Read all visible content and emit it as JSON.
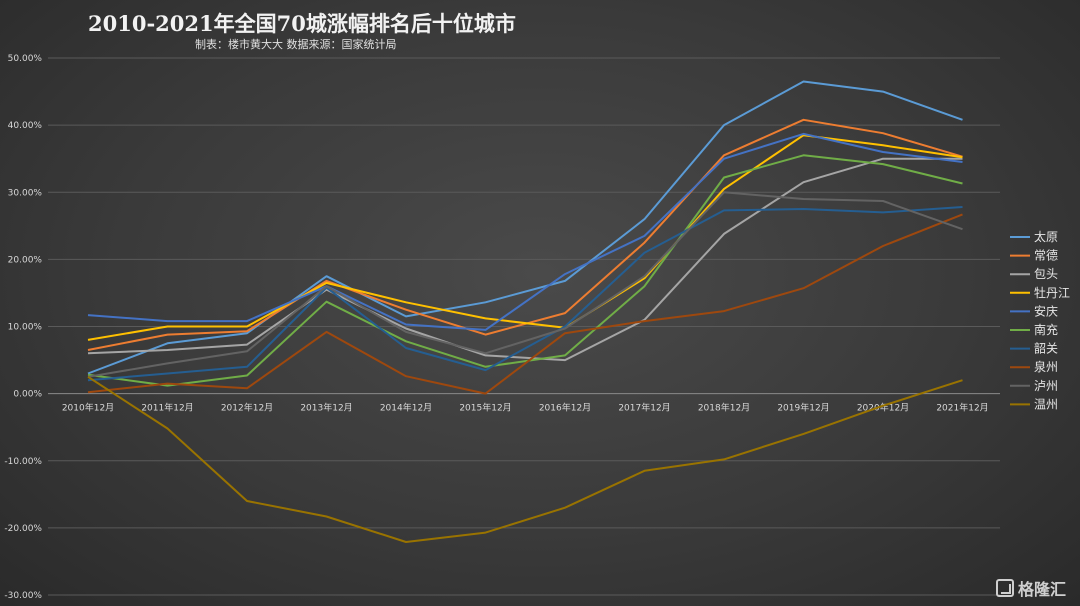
{
  "header": {
    "title": "2010-2021年全国70城涨幅排名后十位城市",
    "subtitle": "制表：楼市黄大大 数据来源：国家统计局"
  },
  "watermark": {
    "text": "格隆汇"
  },
  "chart_data": {
    "type": "line",
    "title": "2010-2021年全国70城涨幅排名后十位城市",
    "subtitle": "制表：楼市黄大大 数据来源：国家统计局",
    "categories": [
      "2010年12月",
      "2011年12月",
      "2012年12月",
      "2013年12月",
      "2014年12月",
      "2015年12月",
      "2016年12月",
      "2017年12月",
      "2018年12月",
      "2019年12月",
      "2020年12月",
      "2021年12月"
    ],
    "ylim": [
      -0.3,
      0.5
    ],
    "yticks": [
      0.5,
      0.4,
      0.3,
      0.2,
      0.1,
      0.0,
      -0.1,
      -0.2,
      -0.3
    ],
    "ytick_labels": [
      "50.00%",
      "40.00%",
      "30.00%",
      "20.00%",
      "10.00%",
      "0.00%",
      "-10.00%",
      "-20.00%",
      "-30.00%"
    ],
    "grid": true,
    "legend_position": "right",
    "series": [
      {
        "name": "太原",
        "color": "#5b9bd5",
        "values": [
          0.03,
          0.075,
          0.09,
          0.175,
          0.115,
          0.136,
          0.168,
          0.26,
          0.4,
          0.465,
          0.45,
          0.408
        ]
      },
      {
        "name": "常德",
        "color": "#ed7d31",
        "values": [
          0.065,
          0.088,
          0.093,
          0.168,
          0.125,
          0.088,
          0.12,
          0.225,
          0.355,
          0.408,
          0.388,
          0.353
        ]
      },
      {
        "name": "包头",
        "color": "#a5a5a5",
        "values": [
          0.06,
          0.065,
          0.073,
          0.155,
          0.097,
          0.057,
          0.05,
          0.11,
          0.238,
          0.315,
          0.35,
          0.35
        ]
      },
      {
        "name": "牡丹江",
        "color": "#ffc000",
        "values": [
          0.08,
          0.1,
          0.1,
          0.165,
          0.136,
          0.112,
          0.098,
          0.172,
          0.305,
          0.385,
          0.37,
          0.352
        ]
      },
      {
        "name": "安庆",
        "color": "#4472c4",
        "values": [
          0.117,
          0.108,
          0.108,
          0.16,
          0.103,
          0.095,
          0.178,
          0.235,
          0.35,
          0.387,
          0.36,
          0.345
        ]
      },
      {
        "name": "南充",
        "color": "#70ad47",
        "values": [
          0.028,
          0.012,
          0.027,
          0.137,
          0.078,
          0.04,
          0.057,
          0.16,
          0.322,
          0.355,
          0.342,
          0.313
        ]
      },
      {
        "name": "韶关",
        "color": "#255e91",
        "values": [
          0.02,
          0.03,
          0.04,
          0.158,
          0.068,
          0.035,
          0.1,
          0.21,
          0.273,
          0.275,
          0.27,
          0.278
        ]
      },
      {
        "name": "泉州",
        "color": "#9e480e",
        "values": [
          0.002,
          0.015,
          0.008,
          0.092,
          0.026,
          0.0,
          0.09,
          0.108,
          0.123,
          0.157,
          0.22,
          0.267
        ]
      },
      {
        "name": "泸州",
        "color": "#636363",
        "values": [
          0.025,
          0.045,
          0.063,
          0.16,
          0.092,
          0.06,
          0.097,
          0.175,
          0.3,
          0.29,
          0.287,
          0.245
        ]
      },
      {
        "name": "温州",
        "color": "#997300",
        "values": [
          0.025,
          -0.052,
          -0.16,
          -0.183,
          -0.221,
          -0.207,
          -0.17,
          -0.115,
          -0.098,
          -0.06,
          -0.018,
          0.02
        ]
      }
    ]
  }
}
